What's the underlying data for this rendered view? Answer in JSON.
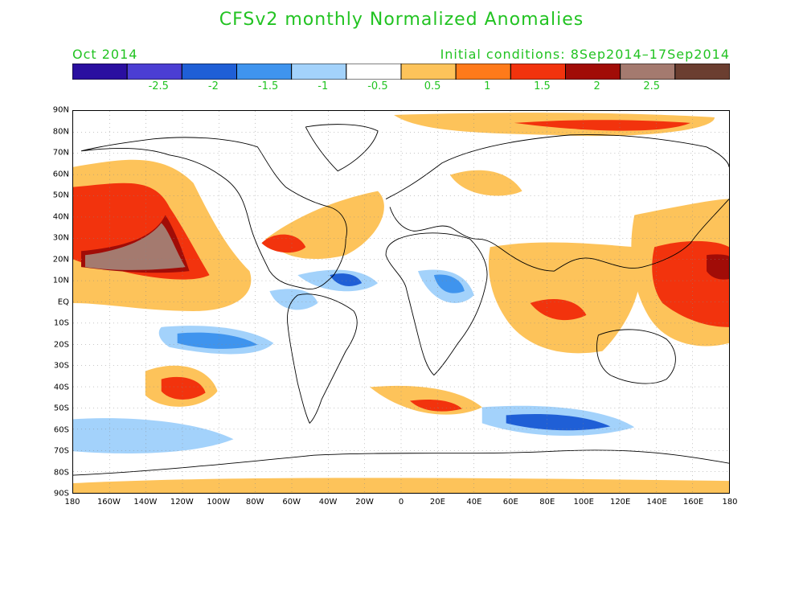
{
  "title": "CFSv2 monthly Normalized Anomalies",
  "month_label": "Oct 2014",
  "init_label": "Initial conditions: 8Sep2014–17Sep2014",
  "legend": {
    "colors": [
      "#2a0fa0",
      "#4b3ed3",
      "#1f5fd6",
      "#3f94ee",
      "#a3d2fb",
      "#ffffff",
      "#fdc35a",
      "#ff7a1a",
      "#f2330d",
      "#a10c07",
      "#a47a6f",
      "#6b3e30"
    ],
    "labels": [
      "-2.5",
      "-2",
      "-1.5",
      "-1",
      "-0.5",
      "0.5",
      "1",
      "1.5",
      "2",
      "2.5"
    ]
  },
  "map": {
    "lat_labels": [
      "90N",
      "80N",
      "70N",
      "60N",
      "50N",
      "40N",
      "30N",
      "20N",
      "10N",
      "EQ",
      "10S",
      "20S",
      "30S",
      "40S",
      "50S",
      "60S",
      "70S",
      "80S",
      "90S"
    ],
    "lon_labels": [
      "180",
      "160W",
      "140W",
      "120W",
      "100W",
      "80W",
      "60W",
      "40W",
      "20W",
      "0",
      "20E",
      "40E",
      "60E",
      "80E",
      "100E",
      "120E",
      "140E",
      "160E",
      "180"
    ]
  }
}
